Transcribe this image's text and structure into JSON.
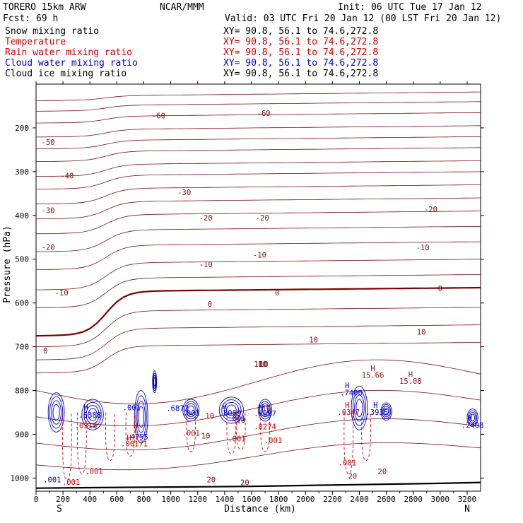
{
  "header": {
    "model": "TORERO  15km ARW",
    "center": "NCAR/MMM",
    "init": "Init: 06 UTC Tue 17 Jan 12",
    "fcst": "Fcst:   69 h",
    "valid": "Valid: 03 UTC Fri 20 Jan 12 (00 LST Fri 20 Jan 12)"
  },
  "fields": [
    {
      "label": "Snow mixing ratio",
      "xy": "XY=  90.8, 56.1 to  74.6,272.8",
      "color": "#000000"
    },
    {
      "label": "Temperature",
      "xy": "XY=  90.8, 56.1 to  74.6,272.8",
      "color": "#cc0000"
    },
    {
      "label": "Rain water mixing ratio",
      "xy": "XY=  90.8, 56.1 to  74.6,272.8",
      "color": "#cc0000"
    },
    {
      "label": "Cloud water mixing ratio",
      "xy": "XY=  90.8, 56.1 to  74.6,272.8",
      "color": "#0000cc"
    },
    {
      "label": "Cloud ice mixing ratio",
      "xy": "XY=  90.8, 56.1 to  74.6,272.8",
      "color": "#000000"
    }
  ],
  "colors": {
    "temperature": "#7a1010",
    "freezing": "#7a0000",
    "rain": "#cc0000",
    "cloud": "#0000bb",
    "terrain": "#000000"
  },
  "chart_data": {
    "type": "line",
    "xlabel": "Distance (km)",
    "ylabel": "Pressure (hPa)",
    "xlim": [
      0,
      3300
    ],
    "ylim": [
      1030,
      100
    ],
    "x_ticks": [
      0,
      200,
      400,
      600,
      800,
      1000,
      1200,
      1400,
      1600,
      1800,
      2000,
      2200,
      2400,
      2600,
      2800,
      3000,
      3200
    ],
    "y_ticks": [
      200,
      300,
      400,
      500,
      600,
      700,
      800,
      900,
      1000
    ],
    "endpoints": {
      "left": "S",
      "right": "N"
    },
    "temperature_contour_labels": [
      {
        "text": "-60",
        "x": 910,
        "p": 172
      },
      {
        "text": "-60",
        "x": 1690,
        "p": 166
      },
      {
        "text": "-50",
        "x": 90,
        "p": 232
      },
      {
        "text": "-40",
        "x": 230,
        "p": 309
      },
      {
        "text": "-30",
        "x": 1100,
        "p": 347
      },
      {
        "text": "-30",
        "x": 90,
        "p": 388
      },
      {
        "text": "-20",
        "x": 2930,
        "p": 386
      },
      {
        "text": "-20",
        "x": 1260,
        "p": 405
      },
      {
        "text": "-20",
        "x": 1680,
        "p": 405
      },
      {
        "text": "-20",
        "x": 90,
        "p": 472
      },
      {
        "text": "-10",
        "x": 2870,
        "p": 473
      },
      {
        "text": "-10",
        "x": 1260,
        "p": 512
      },
      {
        "text": "-10",
        "x": 1660,
        "p": 490
      },
      {
        "text": "-10",
        "x": 190,
        "p": 576
      },
      {
        "text": "0",
        "x": 3000,
        "p": 567
      },
      {
        "text": "0",
        "x": 1790,
        "p": 576
      },
      {
        "text": "0",
        "x": 1290,
        "p": 602
      },
      {
        "text": "0",
        "x": 70,
        "p": 709
      },
      {
        "text": "10",
        "x": 2860,
        "p": 666
      },
      {
        "text": "10",
        "x": 2060,
        "p": 684
      },
      {
        "text": "10",
        "x": 1690,
        "p": 739
      },
      {
        "text": "10",
        "x": 1690,
        "p": 739
      },
      {
        "text": "10",
        "x": 1650,
        "p": 739
      },
      {
        "text": "10",
        "x": 1680,
        "p": 739
      },
      {
        "text": "10",
        "x": 1290,
        "p": 858
      },
      {
        "text": "10",
        "x": 1710,
        "p": 840
      },
      {
        "text": "10",
        "x": 1520,
        "p": 868
      },
      {
        "text": "10",
        "x": 1260,
        "p": 903
      },
      {
        "text": "20",
        "x": 1300,
        "p": 1003
      },
      {
        "text": "20",
        "x": 2350,
        "p": 995
      },
      {
        "text": "20",
        "x": 2570,
        "p": 985
      },
      {
        "text": "20",
        "x": 1550,
        "p": 1010
      }
    ],
    "maxima_labels": [
      {
        "text": "H",
        "x": 2500,
        "p": 749,
        "color": "#7a1010"
      },
      {
        "text": "15.66",
        "x": 2500,
        "p": 764,
        "color": "#7a1010"
      },
      {
        "text": "H",
        "x": 2780,
        "p": 763,
        "color": "#7a1010"
      },
      {
        "text": "15.08",
        "x": 2780,
        "p": 778,
        "color": "#7a1010"
      },
      {
        "text": "H",
        "x": 2310,
        "p": 788,
        "color": "#0000bb"
      },
      {
        "text": ".7406",
        "x": 2340,
        "p": 805,
        "color": "#0000bb"
      },
      {
        "text": "H",
        "x": 2310,
        "p": 833,
        "color": "#cc0000"
      },
      {
        "text": ".0347",
        "x": 2320,
        "p": 849,
        "color": "#cc0000"
      },
      {
        "text": "H",
        "x": 2520,
        "p": 833,
        "color": "#0000bb"
      },
      {
        "text": ".3935",
        "x": 2530,
        "p": 849,
        "color": "#0000bb"
      },
      {
        "text": "H",
        "x": 370,
        "p": 838,
        "color": "#0000bb"
      },
      {
        "text": ".6388",
        "x": 400,
        "p": 856,
        "color": "#0000bb"
      },
      {
        "text": ".0318",
        "x": 370,
        "p": 880,
        "color": "#cc0000"
      },
      {
        "text": ".001",
        "x": 710,
        "p": 839,
        "color": "#0000bb"
      },
      {
        "text": "H",
        "x": 740,
        "p": 880,
        "color": "#cc0000"
      },
      {
        "text": "H",
        "x": 690,
        "p": 907,
        "color": "#cc0000"
      },
      {
        "text": ".4755",
        "x": 750,
        "p": 906,
        "color": "#0000bb"
      },
      {
        "text": ".00171",
        "x": 730,
        "p": 921,
        "color": "#cc0000"
      },
      {
        "text": ".6872",
        "x": 1050,
        "p": 840,
        "color": "#0000bb"
      },
      {
        "text": ".001",
        "x": 1150,
        "p": 851,
        "color": "#0000bb"
      },
      {
        "text": ".001",
        "x": 1150,
        "p": 897,
        "color": "#cc0000"
      },
      {
        "text": "H",
        "x": 1400,
        "p": 836,
        "color": "#0000bb"
      },
      {
        "text": ".8069",
        "x": 1440,
        "p": 851,
        "color": "#0000bb"
      },
      {
        "text": ".001",
        "x": 1490,
        "p": 864,
        "color": "#0000bb"
      },
      {
        "text": ".001",
        "x": 1490,
        "p": 910,
        "color": "#cc0000"
      },
      {
        "text": "H",
        "x": 1670,
        "p": 838,
        "color": "#0000bb"
      },
      {
        "text": ".6887",
        "x": 1700,
        "p": 852,
        "color": "#0000bb"
      },
      {
        "text": ".0274",
        "x": 1700,
        "p": 882,
        "color": "#cc0000"
      },
      {
        "text": ".001",
        "x": 1760,
        "p": 914,
        "color": "#cc0000"
      },
      {
        "text": ".001",
        "x": 2310,
        "p": 965,
        "color": "#cc0000"
      },
      {
        "text": ".001",
        "x": 430,
        "p": 984,
        "color": "#cc0000"
      },
      {
        "text": ".001",
        "x": 260,
        "p": 1009,
        "color": "#cc0000"
      },
      {
        "text": ".001",
        "x": 120,
        "p": 1003,
        "color": "#0000bb"
      },
      {
        "text": "H",
        "x": 3220,
        "p": 862,
        "color": "#0000bb"
      },
      {
        "text": ".2408",
        "x": 3240,
        "p": 879,
        "color": "#0000bb"
      }
    ],
    "terrain": [
      {
        "x": 0,
        "p": 1023
      },
      {
        "x": 400,
        "p": 1022
      },
      {
        "x": 800,
        "p": 1021
      },
      {
        "x": 1200,
        "p": 1020
      },
      {
        "x": 1600,
        "p": 1019
      },
      {
        "x": 2000,
        "p": 1017
      },
      {
        "x": 2400,
        "p": 1015
      },
      {
        "x": 2800,
        "p": 1013
      },
      {
        "x": 3000,
        "p": 1012
      },
      {
        "x": 3300,
        "p": 1010
      }
    ]
  }
}
